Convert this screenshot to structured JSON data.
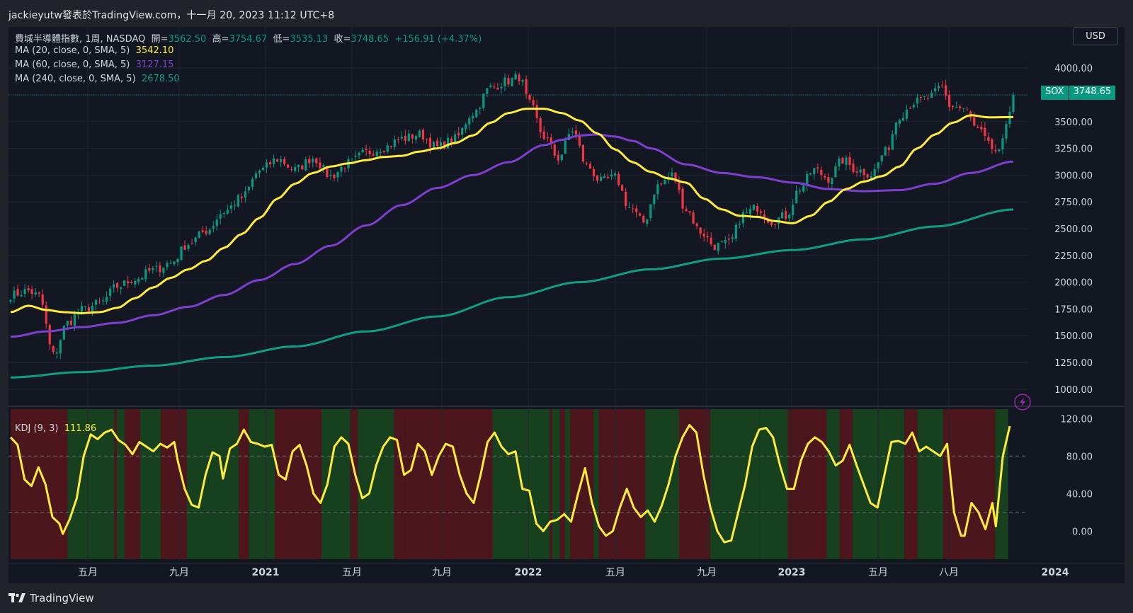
{
  "header": {
    "source_text": "jackieyutw發表於TradingView.com，十一月 20, 2023 11:12 UTC+8"
  },
  "footer": {
    "brand": "TradingView"
  },
  "legend": {
    "symbol_line": "費城半導體指數, 1周, NASDAQ",
    "open_label": "開=",
    "open": "3562.50",
    "high_label": "高=",
    "high": "3754.67",
    "low_label": "低=",
    "low": "3535.13",
    "close_label": "收=",
    "close": "3748.65",
    "change": "+156.91 (+4.37%)",
    "ma20_label": "MA (20, close, 0, SMA, 5)",
    "ma20_value": "3542.10",
    "ma60_label": "MA (60, close, 0, SMA, 5)",
    "ma60_value": "3127.15",
    "ma240_label": "MA (240, close, 0, SMA, 5)",
    "ma240_value": "2678.50",
    "kdj_label": "KDJ (9, 3)",
    "kdj_value": "111.86"
  },
  "controls": {
    "currency": "USD"
  },
  "last_price_tag": {
    "symbol": "SOX",
    "value": "3748.65"
  },
  "colors": {
    "up": "#089981",
    "down": "#f23645",
    "ma20": "#ffeb3b",
    "ma60": "#7e3fd1",
    "ma240": "#0e9f83",
    "kdj": "#ffeb3b",
    "bg_up": "#17401e",
    "bg_down": "#4d161d"
  },
  "chart_data": {
    "type": "candlestick",
    "timeframe": "1W",
    "x_axis_labels": [
      "五月",
      "九月",
      "2021",
      "五月",
      "九月",
      "2022",
      "五月",
      "九月",
      "2023",
      "五月",
      "八月",
      "2024"
    ],
    "price_axis_ticks": [
      "4000.00",
      "3750.00",
      "3500.00",
      "3250.00",
      "3000.00",
      "2750.00",
      "2500.00",
      "2250.00",
      "2000.00",
      "1750.00",
      "1500.00",
      "1250.00",
      "1000.00"
    ],
    "kdj_axis_ticks": [
      "120.00",
      "80.00",
      "40.00",
      "0.00"
    ],
    "kdj_guides": [
      80,
      20
    ],
    "price_range": [
      880,
      4120
    ],
    "kdj_range": [
      -30,
      130
    ],
    "last_close": 3748.65,
    "close_anchors": [
      [
        0,
        1880
      ],
      [
        5,
        1920
      ],
      [
        8,
        1870
      ],
      [
        12,
        1320
      ],
      [
        16,
        1620
      ],
      [
        20,
        1740
      ],
      [
        25,
        1800
      ],
      [
        30,
        1960
      ],
      [
        35,
        2030
      ],
      [
        40,
        2110
      ],
      [
        45,
        2180
      ],
      [
        50,
        2360
      ],
      [
        55,
        2480
      ],
      [
        60,
        2660
      ],
      [
        65,
        2790
      ],
      [
        70,
        3040
      ],
      [
        75,
        3150
      ],
      [
        80,
        3050
      ],
      [
        85,
        3160
      ],
      [
        90,
        2990
      ],
      [
        95,
        3110
      ],
      [
        100,
        3210
      ],
      [
        105,
        3260
      ],
      [
        110,
        3340
      ],
      [
        115,
        3380
      ],
      [
        120,
        3260
      ],
      [
        125,
        3340
      ],
      [
        130,
        3580
      ],
      [
        135,
        3820
      ],
      [
        140,
        3880
      ],
      [
        143,
        3920
      ],
      [
        146,
        3660
      ],
      [
        150,
        3360
      ],
      [
        154,
        3160
      ],
      [
        158,
        3420
      ],
      [
        162,
        3090
      ],
      [
        166,
        2940
      ],
      [
        170,
        2980
      ],
      [
        174,
        2700
      ],
      [
        178,
        2560
      ],
      [
        182,
        2900
      ],
      [
        186,
        3000
      ],
      [
        190,
        2680
      ],
      [
        194,
        2470
      ],
      [
        198,
        2340
      ],
      [
        202,
        2360
      ],
      [
        206,
        2630
      ],
      [
        210,
        2700
      ],
      [
        214,
        2570
      ],
      [
        218,
        2620
      ],
      [
        222,
        2880
      ],
      [
        226,
        3050
      ],
      [
        230,
        2970
      ],
      [
        234,
        3140
      ],
      [
        238,
        3050
      ],
      [
        242,
        3010
      ],
      [
        246,
        3220
      ],
      [
        250,
        3560
      ],
      [
        254,
        3680
      ],
      [
        258,
        3720
      ],
      [
        262,
        3820
      ],
      [
        264,
        3650
      ],
      [
        268,
        3620
      ],
      [
        272,
        3420
      ],
      [
        276,
        3250
      ],
      [
        278,
        3200
      ],
      [
        281,
        3591.74
      ],
      [
        282,
        3748.65
      ]
    ],
    "ma20_series": [
      [
        0,
        1720
      ],
      [
        5,
        1780
      ],
      [
        10,
        1740
      ],
      [
        15,
        1720
      ],
      [
        20,
        1710
      ],
      [
        25,
        1720
      ],
      [
        30,
        1760
      ],
      [
        35,
        1850
      ],
      [
        40,
        1950
      ],
      [
        45,
        2040
      ],
      [
        50,
        2120
      ],
      [
        55,
        2200
      ],
      [
        60,
        2320
      ],
      [
        65,
        2450
      ],
      [
        70,
        2600
      ],
      [
        75,
        2780
      ],
      [
        80,
        2920
      ],
      [
        85,
        3020
      ],
      [
        90,
        3080
      ],
      [
        95,
        3110
      ],
      [
        100,
        3140
      ],
      [
        105,
        3170
      ],
      [
        110,
        3180
      ],
      [
        115,
        3220
      ],
      [
        120,
        3250
      ],
      [
        125,
        3300
      ],
      [
        130,
        3370
      ],
      [
        135,
        3490
      ],
      [
        140,
        3580
      ],
      [
        145,
        3620
      ],
      [
        150,
        3620
      ],
      [
        155,
        3580
      ],
      [
        160,
        3510
      ],
      [
        165,
        3390
      ],
      [
        170,
        3240
      ],
      [
        175,
        3120
      ],
      [
        180,
        3030
      ],
      [
        185,
        2970
      ],
      [
        190,
        2930
      ],
      [
        195,
        2780
      ],
      [
        200,
        2680
      ],
      [
        205,
        2620
      ],
      [
        210,
        2610
      ],
      [
        215,
        2570
      ],
      [
        220,
        2550
      ],
      [
        225,
        2620
      ],
      [
        230,
        2750
      ],
      [
        235,
        2870
      ],
      [
        240,
        2940
      ],
      [
        245,
        2990
      ],
      [
        250,
        3080
      ],
      [
        255,
        3250
      ],
      [
        260,
        3380
      ],
      [
        265,
        3490
      ],
      [
        270,
        3560
      ],
      [
        275,
        3540
      ],
      [
        282,
        3542.1
      ]
    ],
    "ma60_series": [
      [
        0,
        1490
      ],
      [
        10,
        1540
      ],
      [
        20,
        1580
      ],
      [
        30,
        1620
      ],
      [
        40,
        1690
      ],
      [
        50,
        1770
      ],
      [
        60,
        1880
      ],
      [
        70,
        2020
      ],
      [
        80,
        2170
      ],
      [
        90,
        2340
      ],
      [
        100,
        2530
      ],
      [
        110,
        2720
      ],
      [
        120,
        2880
      ],
      [
        130,
        3000
      ],
      [
        140,
        3120
      ],
      [
        150,
        3280
      ],
      [
        155,
        3330
      ],
      [
        160,
        3370
      ],
      [
        165,
        3380
      ],
      [
        170,
        3360
      ],
      [
        175,
        3320
      ],
      [
        180,
        3250
      ],
      [
        190,
        3100
      ],
      [
        200,
        3020
      ],
      [
        210,
        2980
      ],
      [
        220,
        2930
      ],
      [
        230,
        2870
      ],
      [
        240,
        2850
      ],
      [
        250,
        2860
      ],
      [
        260,
        2920
      ],
      [
        270,
        3020
      ],
      [
        282,
        3127.15
      ]
    ],
    "ma240_series": [
      [
        0,
        1110
      ],
      [
        20,
        1160
      ],
      [
        40,
        1220
      ],
      [
        60,
        1300
      ],
      [
        80,
        1400
      ],
      [
        100,
        1540
      ],
      [
        120,
        1680
      ],
      [
        140,
        1860
      ],
      [
        160,
        2000
      ],
      [
        180,
        2120
      ],
      [
        200,
        2220
      ],
      [
        220,
        2300
      ],
      [
        240,
        2400
      ],
      [
        260,
        2520
      ],
      [
        282,
        2678.5
      ]
    ],
    "kdj_anchors": [
      [
        0,
        100
      ],
      [
        2,
        92
      ],
      [
        4,
        55
      ],
      [
        6,
        48
      ],
      [
        8,
        68
      ],
      [
        10,
        50
      ],
      [
        12,
        15
      ],
      [
        14,
        8
      ],
      [
        15,
        -3
      ],
      [
        17,
        13
      ],
      [
        19,
        35
      ],
      [
        21,
        80
      ],
      [
        23,
        103
      ],
      [
        25,
        98
      ],
      [
        27,
        105
      ],
      [
        29,
        108
      ],
      [
        31,
        97
      ],
      [
        33,
        92
      ],
      [
        35,
        82
      ],
      [
        37,
        95
      ],
      [
        39,
        90
      ],
      [
        41,
        85
      ],
      [
        43,
        93
      ],
      [
        45,
        89
      ],
      [
        47,
        95
      ],
      [
        48,
        75
      ],
      [
        50,
        45
      ],
      [
        52,
        28
      ],
      [
        54,
        25
      ],
      [
        56,
        60
      ],
      [
        58,
        84
      ],
      [
        60,
        80
      ],
      [
        61,
        56
      ],
      [
        63,
        88
      ],
      [
        65,
        93
      ],
      [
        67,
        108
      ],
      [
        69,
        95
      ],
      [
        71,
        93
      ],
      [
        73,
        90
      ],
      [
        75,
        92
      ],
      [
        77,
        60
      ],
      [
        79,
        55
      ],
      [
        81,
        85
      ],
      [
        83,
        92
      ],
      [
        85,
        70
      ],
      [
        87,
        40
      ],
      [
        89,
        30
      ],
      [
        91,
        50
      ],
      [
        93,
        90
      ],
      [
        95,
        100
      ],
      [
        97,
        93
      ],
      [
        99,
        60
      ],
      [
        101,
        35
      ],
      [
        103,
        40
      ],
      [
        105,
        70
      ],
      [
        107,
        90
      ],
      [
        109,
        100
      ],
      [
        111,
        97
      ],
      [
        113,
        60
      ],
      [
        115,
        65
      ],
      [
        117,
        93
      ],
      [
        119,
        85
      ],
      [
        121,
        60
      ],
      [
        123,
        80
      ],
      [
        125,
        93
      ],
      [
        127,
        90
      ],
      [
        129,
        60
      ],
      [
        131,
        40
      ],
      [
        133,
        30
      ],
      [
        135,
        60
      ],
      [
        137,
        95
      ],
      [
        139,
        105
      ],
      [
        141,
        90
      ],
      [
        143,
        82
      ],
      [
        145,
        85
      ],
      [
        147,
        45
      ],
      [
        149,
        43
      ],
      [
        151,
        8
      ],
      [
        153,
        0
      ],
      [
        155,
        10
      ],
      [
        157,
        12
      ],
      [
        159,
        18
      ],
      [
        161,
        10
      ],
      [
        163,
        40
      ],
      [
        165,
        67
      ],
      [
        167,
        30
      ],
      [
        169,
        5
      ],
      [
        171,
        -5
      ],
      [
        173,
        0
      ],
      [
        175,
        25
      ],
      [
        177,
        45
      ],
      [
        179,
        25
      ],
      [
        181,
        15
      ],
      [
        183,
        22
      ],
      [
        185,
        10
      ],
      [
        187,
        27
      ],
      [
        189,
        50
      ],
      [
        191,
        80
      ],
      [
        193,
        100
      ],
      [
        195,
        113
      ],
      [
        197,
        105
      ],
      [
        199,
        60
      ],
      [
        201,
        25
      ],
      [
        203,
        0
      ],
      [
        205,
        -12
      ],
      [
        207,
        -10
      ],
      [
        209,
        20
      ],
      [
        211,
        50
      ],
      [
        213,
        90
      ],
      [
        215,
        108
      ],
      [
        217,
        110
      ],
      [
        219,
        100
      ],
      [
        221,
        70
      ],
      [
        223,
        45
      ],
      [
        225,
        45
      ],
      [
        227,
        75
      ],
      [
        229,
        93
      ],
      [
        231,
        100
      ],
      [
        233,
        95
      ],
      [
        235,
        85
      ],
      [
        237,
        70
      ],
      [
        239,
        75
      ],
      [
        241,
        92
      ],
      [
        243,
        70
      ],
      [
        245,
        50
      ],
      [
        247,
        30
      ],
      [
        249,
        25
      ],
      [
        251,
        60
      ],
      [
        253,
        95
      ],
      [
        255,
        96
      ],
      [
        257,
        93
      ],
      [
        259,
        105
      ],
      [
        261,
        85
      ],
      [
        263,
        90
      ],
      [
        265,
        85
      ],
      [
        267,
        80
      ],
      [
        269,
        93
      ],
      [
        271,
        20
      ],
      [
        273,
        -5
      ],
      [
        274,
        -5
      ],
      [
        276,
        30
      ],
      [
        278,
        20
      ],
      [
        280,
        2
      ],
      [
        282,
        30
      ],
      [
        283,
        5
      ],
      [
        285,
        80
      ],
      [
        287,
        111.86
      ]
    ],
    "kdj_regions": [
      [
        0,
        22,
        "down"
      ],
      [
        22,
        40,
        "up"
      ],
      [
        40,
        41,
        "down"
      ],
      [
        41,
        44,
        "up"
      ],
      [
        44,
        50,
        "down"
      ],
      [
        50,
        58,
        "up"
      ],
      [
        58,
        68,
        "down"
      ],
      [
        68,
        88,
        "up"
      ],
      [
        88,
        92,
        "down"
      ],
      [
        92,
        102,
        "up"
      ],
      [
        102,
        120,
        "down"
      ],
      [
        120,
        131,
        "up"
      ],
      [
        131,
        134,
        "down"
      ],
      [
        134,
        148,
        "up"
      ],
      [
        148,
        152,
        "down"
      ],
      [
        152,
        186,
        "down"
      ],
      [
        186,
        208,
        "up"
      ],
      [
        208,
        209,
        "down"
      ],
      [
        209,
        212,
        "up"
      ],
      [
        212,
        214,
        "down"
      ],
      [
        214,
        216,
        "up"
      ],
      [
        216,
        225,
        "down"
      ],
      [
        225,
        227,
        "up"
      ],
      [
        227,
        245,
        "down"
      ],
      [
        245,
        258,
        "up"
      ],
      [
        258,
        270,
        "down"
      ],
      [
        270,
        289,
        "up"
      ],
      [
        289,
        300,
        "up"
      ],
      [
        300,
        315,
        "down"
      ],
      [
        315,
        320,
        "up"
      ],
      [
        320,
        325,
        "down"
      ],
      [
        325,
        345,
        "up"
      ],
      [
        345,
        350,
        "down"
      ],
      [
        350,
        360,
        "up"
      ],
      [
        360,
        366,
        "down"
      ],
      [
        366,
        380,
        "down"
      ],
      [
        380,
        385,
        "up"
      ]
    ]
  }
}
